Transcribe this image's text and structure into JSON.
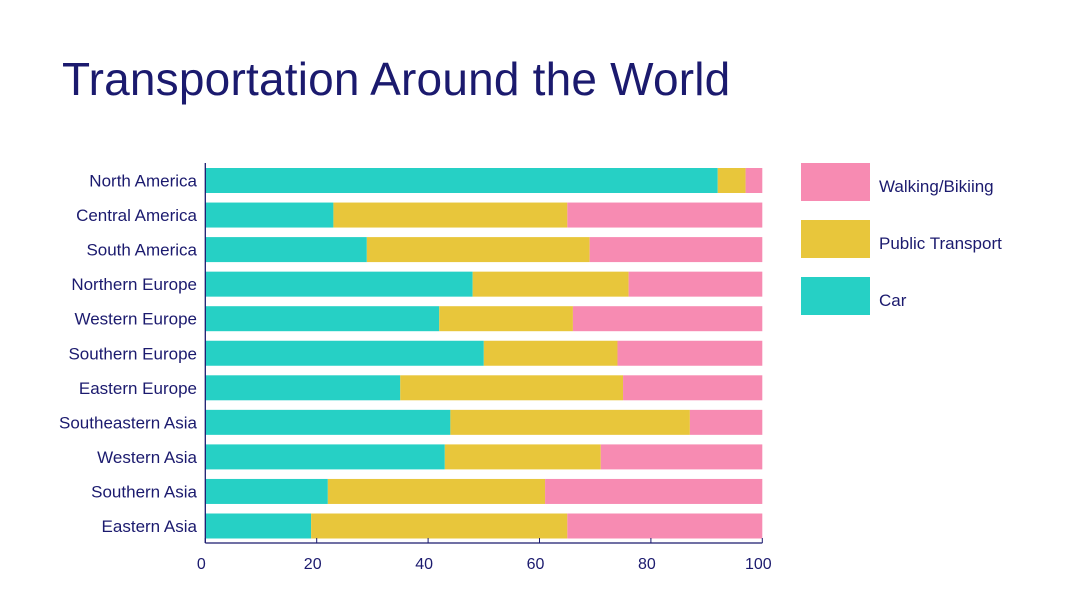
{
  "chart_data": {
    "type": "bar",
    "orientation": "horizontal",
    "stacked": true,
    "title": "Transportation Around the World",
    "xlabel": "",
    "ylabel": "",
    "xlim": [
      0,
      100
    ],
    "xticks": [
      0,
      20,
      40,
      60,
      80,
      100
    ],
    "grid": false,
    "legend_position": "right",
    "categories": [
      "North America",
      "Central America",
      "South America",
      "Northern Europe",
      "Western Europe",
      "Southern Europe",
      "Eastern Europe",
      "Southeastern Asia",
      "Western Asia",
      "Southern Asia ",
      "Eastern Asia"
    ],
    "series": [
      {
        "name": "Car",
        "color": "#26d0c5",
        "values": [
          92,
          23,
          29,
          48,
          42,
          50,
          35,
          44,
          43,
          22,
          19
        ]
      },
      {
        "name": "Public Transport",
        "color": "#e8c63b",
        "values": [
          5,
          42,
          40,
          28,
          24,
          24,
          40,
          43,
          28,
          39,
          46
        ]
      },
      {
        "name": "Walking/Bikiing",
        "color": "#f78bb2",
        "values": [
          3,
          35,
          31,
          24,
          34,
          26,
          25,
          13,
          29,
          39,
          35
        ]
      }
    ],
    "legend_order": [
      "Walking/Bikiing",
      "Public Transport",
      "Car"
    ],
    "text_color": "#1b1a6e"
  }
}
